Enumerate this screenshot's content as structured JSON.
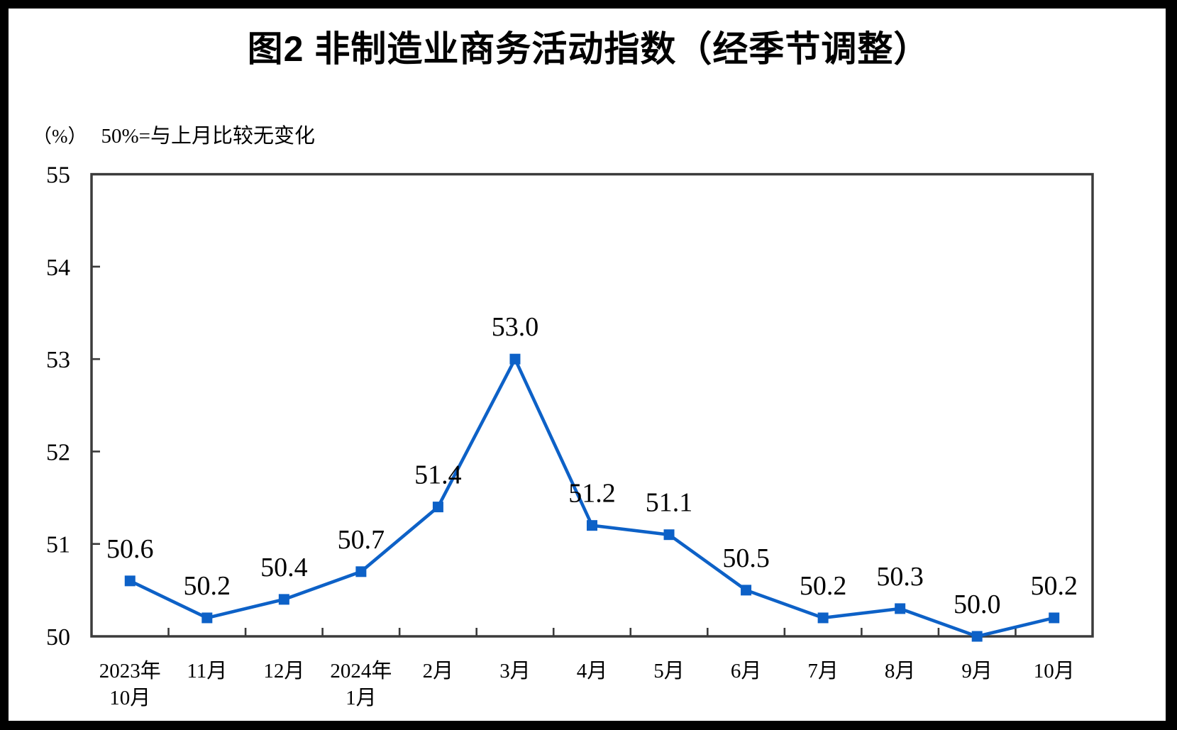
{
  "title": "图2 非制造业商务活动指数（经季节调整）",
  "subtitle": {
    "unit": "（%）",
    "note": "50%=与上月比较无变化"
  },
  "chart_data": {
    "type": "line",
    "title": "图2 非制造业商务活动指数（经季节调整）",
    "unit_label": "（%）",
    "note": "50%=与上月比较无变化",
    "categories": [
      [
        "2023年",
        "10月"
      ],
      [
        "11月"
      ],
      [
        "12月"
      ],
      [
        "2024年",
        "1月"
      ],
      [
        "2月"
      ],
      [
        "3月"
      ],
      [
        "4月"
      ],
      [
        "5月"
      ],
      [
        "6月"
      ],
      [
        "7月"
      ],
      [
        "8月"
      ],
      [
        "9月"
      ],
      [
        "10月"
      ]
    ],
    "values": [
      50.6,
      50.2,
      50.4,
      50.7,
      51.4,
      53.0,
      51.2,
      51.1,
      50.5,
      50.2,
      50.3,
      50.0,
      50.2
    ],
    "value_labels": [
      "50.6",
      "50.2",
      "50.4",
      "50.7",
      "51.4",
      "53.0",
      "51.2",
      "51.1",
      "50.5",
      "50.2",
      "50.3",
      "50.0",
      "50.2"
    ],
    "ylim": [
      50,
      55
    ],
    "yticks": [
      50,
      51,
      52,
      53,
      54,
      55
    ],
    "grid": false,
    "legend": "none",
    "series_name": "非制造业商务活动指数",
    "line_color": "#0D61C7",
    "marker": "square",
    "axis_color": "#3B3B3B",
    "text_color": "#000000",
    "background_color": "#FFFFFF",
    "frame_color": "#000000"
  }
}
